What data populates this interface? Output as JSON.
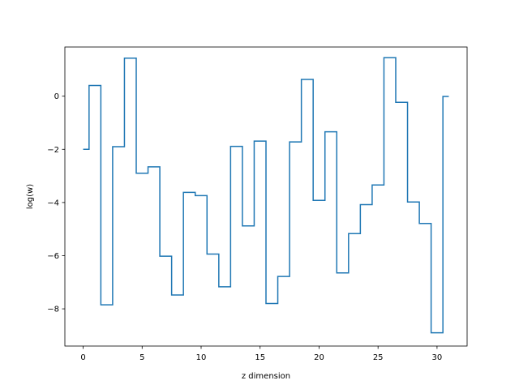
{
  "chart_data": {
    "type": "line",
    "drawstyle": "steps-mid",
    "title": "",
    "xlabel": "z dimension",
    "ylabel": "log(w)",
    "xlim": [
      -1.55,
      32.55
    ],
    "ylim": [
      -9.4,
      1.85
    ],
    "xticks": [
      0,
      5,
      10,
      15,
      20,
      25,
      30
    ],
    "xtick_labels": [
      "0",
      "5",
      "10",
      "15",
      "20",
      "25",
      "30"
    ],
    "yticks": [
      -8,
      -6,
      -4,
      -2,
      0
    ],
    "ytick_labels": [
      "−8",
      "−6",
      "−4",
      "−2",
      "0"
    ],
    "grid": false,
    "legend": "none",
    "color": "#1f77b4",
    "series": [
      {
        "x": [
          0,
          1,
          2,
          3,
          4,
          5,
          6,
          7,
          8,
          9,
          10,
          11,
          12,
          13,
          14,
          15,
          16,
          17,
          18,
          19,
          20,
          21,
          22,
          23,
          24,
          25,
          26,
          27,
          28,
          29,
          30,
          31
        ],
        "values": [
          -2.0,
          0.4,
          -7.85,
          -1.9,
          1.43,
          -2.9,
          -2.66,
          -6.02,
          -7.48,
          -3.62,
          -3.74,
          -5.94,
          -7.17,
          -1.89,
          -4.88,
          -1.69,
          -7.8,
          -6.78,
          -1.72,
          0.63,
          -3.92,
          -1.34,
          -6.65,
          -5.17,
          -4.08,
          -3.34,
          1.45,
          -0.23,
          -3.98,
          -4.79,
          -8.9,
          -0.01
        ]
      }
    ]
  }
}
